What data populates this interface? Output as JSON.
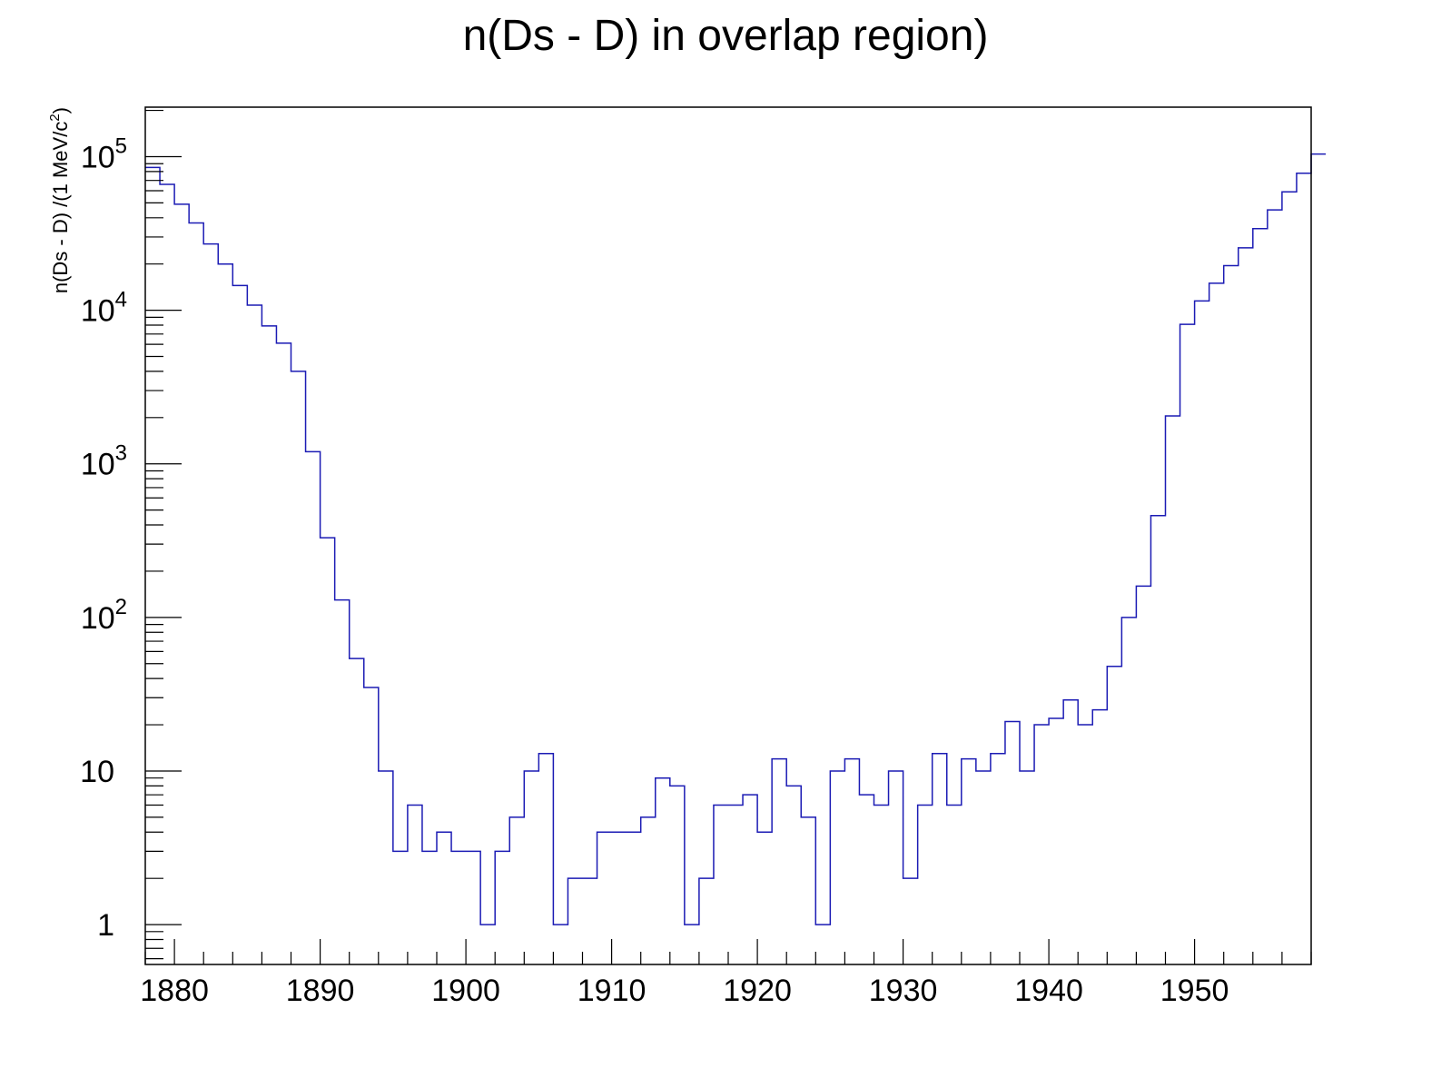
{
  "chart_data": {
    "type": "histogram",
    "title": "n(Ds - D) in overlap region)",
    "xlabel": "",
    "ylabel": "n(Ds - D) /(1 MeV/c",
    "ylabel_sup": "2",
    "ylabel_close": ")",
    "y_scale": "log",
    "xlim": [
      1878,
      1958
    ],
    "ylim": [
      0.55,
      210000
    ],
    "x_ticks": [
      "1880",
      "1890",
      "1900",
      "1910",
      "1920",
      "1930",
      "1940",
      "1950"
    ],
    "x_tick_values": [
      1880,
      1890,
      1900,
      1910,
      1920,
      1930,
      1940,
      1950
    ],
    "y_ticks": [
      {
        "value": 1,
        "base": "1",
        "exp": ""
      },
      {
        "value": 10,
        "base": "10",
        "exp": ""
      },
      {
        "value": 100,
        "base": "10",
        "exp": "2"
      },
      {
        "value": 1000,
        "base": "10",
        "exp": "3"
      },
      {
        "value": 10000,
        "base": "10",
        "exp": "4"
      },
      {
        "value": 100000,
        "base": "10",
        "exp": "5"
      }
    ],
    "bin_width": 1,
    "series": [
      {
        "line_color": "#1b1bb4",
        "x_bin_edges_start": 1878,
        "values": [
          85000,
          66000,
          49000,
          37000,
          27000,
          20000,
          14500,
          10800,
          7900,
          6100,
          4000,
          1200,
          330,
          130,
          54,
          35,
          10,
          3,
          6,
          3,
          4,
          3,
          3,
          1,
          3,
          5,
          10,
          13,
          1,
          2,
          2,
          4,
          4,
          4,
          5,
          9,
          8,
          1,
          2,
          6,
          6,
          7,
          4,
          12,
          8,
          5,
          1,
          10,
          12,
          7,
          6,
          10,
          2,
          6,
          13,
          6,
          12,
          10,
          13,
          21,
          10,
          20,
          22,
          29,
          20,
          25,
          48,
          100,
          160,
          460,
          2050,
          8100,
          11500,
          15000,
          19500,
          25500,
          34000,
          45000,
          59000,
          78000,
          104000
        ]
      }
    ]
  }
}
